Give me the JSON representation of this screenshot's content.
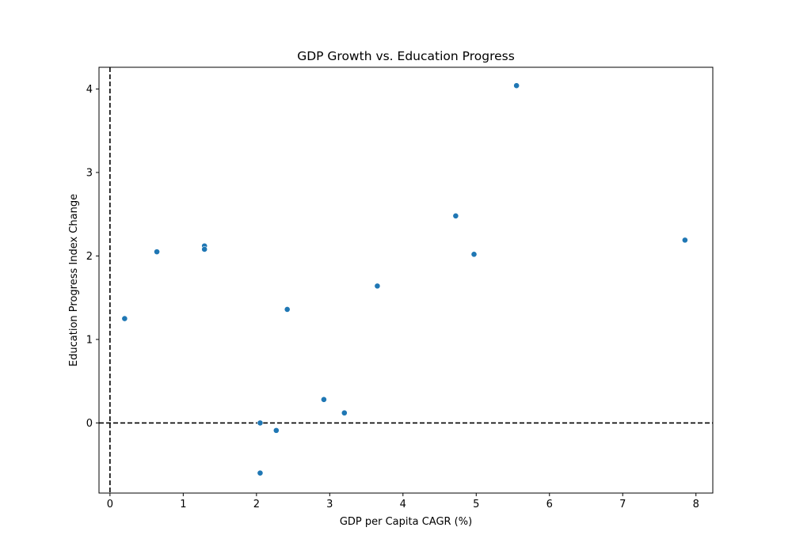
{
  "chart_data": {
    "type": "scatter",
    "title": "GDP Growth vs. Education Progress",
    "xlabel": "GDP per Capita CAGR (%)",
    "ylabel": "Education Progress Index Change",
    "xlim": [
      -0.15,
      8.23
    ],
    "ylim": [
      -0.84,
      4.26
    ],
    "xticks": [
      0,
      1,
      2,
      3,
      4,
      5,
      6,
      7,
      8
    ],
    "yticks": [
      0,
      1,
      2,
      3,
      4
    ],
    "reference_lines": [
      {
        "axis": "x",
        "value": 0,
        "style": "dashed",
        "color": "#000000"
      },
      {
        "axis": "y",
        "value": 0,
        "style": "dashed",
        "color": "#000000"
      }
    ],
    "grid": false,
    "marker_color": "#1f77b4",
    "points": [
      {
        "x": 0.2,
        "y": 1.25
      },
      {
        "x": 0.64,
        "y": 2.05
      },
      {
        "x": 1.29,
        "y": 2.12
      },
      {
        "x": 1.29,
        "y": 2.08
      },
      {
        "x": 2.05,
        "y": 0.0
      },
      {
        "x": 2.05,
        "y": -0.6
      },
      {
        "x": 2.27,
        "y": -0.09
      },
      {
        "x": 2.42,
        "y": 1.36
      },
      {
        "x": 2.92,
        "y": 0.28
      },
      {
        "x": 3.2,
        "y": 0.12
      },
      {
        "x": 3.65,
        "y": 1.64
      },
      {
        "x": 4.72,
        "y": 2.48
      },
      {
        "x": 4.97,
        "y": 2.02
      },
      {
        "x": 5.55,
        "y": 4.04
      },
      {
        "x": 7.85,
        "y": 2.19
      }
    ]
  }
}
